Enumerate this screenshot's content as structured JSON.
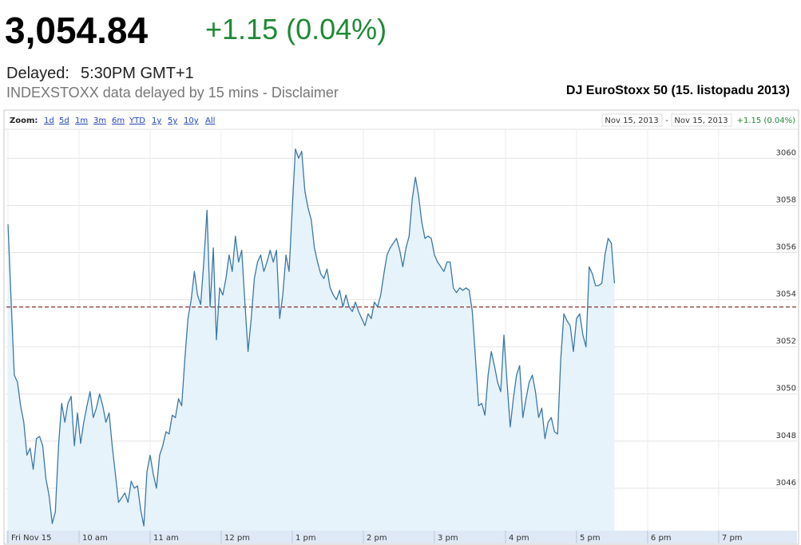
{
  "header": {
    "price": "3,054.84",
    "change": "+1.15 (0.04%)",
    "delayed_label": "Delayed:",
    "delayed_time": "5:30PM GMT+1",
    "source_note": "INDEXSTOXX data delayed by 15 mins - Disclaimer"
  },
  "zoom": {
    "label": "Zoom:",
    "options": [
      "1d",
      "5d",
      "1m",
      "3m",
      "6m",
      "YTD",
      "1y",
      "5y",
      "10y",
      "All"
    ]
  },
  "range": {
    "start": "Nov 15, 2013",
    "separator": "-",
    "end": "Nov 15, 2013",
    "change": "+1.15 (0.04%)"
  },
  "chart_data": {
    "type": "line",
    "title": "DJ EuroStoxx 50 (15. listopadu 2013)",
    "color": "#3b78a6",
    "fill_color": "#e6f3fb",
    "reference_line": 3053.69,
    "reference_color": "#8b3030",
    "grid": true,
    "xlim": [
      0,
      38430
    ],
    "ylim": [
      3044.2,
      3061.2
    ],
    "xticks": [
      {
        "value": 0,
        "label": "Fri Nov 15"
      },
      {
        "value": 3600,
        "label": "10 am"
      },
      {
        "value": 7200,
        "label": "11 am"
      },
      {
        "value": 10800,
        "label": "12 pm"
      },
      {
        "value": 14400,
        "label": "1 pm"
      },
      {
        "value": 18000,
        "label": "2 pm"
      },
      {
        "value": 21600,
        "label": "3 pm"
      },
      {
        "value": 25200,
        "label": "4 pm"
      },
      {
        "value": 28800,
        "label": "5 pm"
      },
      {
        "value": 32400,
        "label": "6 pm"
      },
      {
        "value": 36000,
        "label": "7 pm"
      }
    ],
    "yticks": [
      3046,
      3048,
      3050,
      3052,
      3054,
      3056,
      3058,
      3060
    ],
    "x": [
      0,
      160,
      320,
      480,
      640,
      800,
      960,
      1120,
      1280,
      1440,
      1600,
      1760,
      1920,
      2080,
      2240,
      2400,
      2560,
      2720,
      2880,
      3040,
      3200,
      3360,
      3520,
      3680,
      3840,
      4000,
      4160,
      4320,
      4480,
      4640,
      4800,
      4960,
      5120,
      5280,
      5440,
      5600,
      5760,
      5920,
      6080,
      6240,
      6400,
      6560,
      6720,
      6880,
      7040,
      7200,
      7360,
      7520,
      7680,
      7840,
      8000,
      8160,
      8320,
      8480,
      8640,
      8800,
      8960,
      9120,
      9280,
      9440,
      9600,
      9760,
      9920,
      10080,
      10240,
      10400,
      10560,
      10720,
      10880,
      11040,
      11200,
      11360,
      11520,
      11680,
      11840,
      12000,
      12160,
      12320,
      12480,
      12640,
      12800,
      12960,
      13120,
      13280,
      13440,
      13600,
      13760,
      13920,
      14080,
      14240,
      14400,
      14560,
      14720,
      14880,
      15040,
      15200,
      15360,
      15520,
      15680,
      15840,
      16000,
      16160,
      16320,
      16480,
      16640,
      16800,
      16960,
      17120,
      17280,
      17440,
      17600,
      17760,
      17920,
      18080,
      18240,
      18400,
      18560,
      18720,
      18880,
      19040,
      19200,
      19360,
      19520,
      19680,
      19840,
      20000,
      20160,
      20320,
      20480,
      20640,
      20800,
      20960,
      21120,
      21280,
      21440,
      21600,
      21760,
      21920,
      22080,
      22240,
      22400,
      22560,
      22720,
      22880,
      23040,
      23200,
      23360,
      23520,
      23680,
      23840,
      24000,
      24160,
      24320,
      24480,
      24640,
      24800,
      24960,
      25120,
      25280,
      25440,
      25600,
      25760,
      25920,
      26080,
      26240,
      26400,
      26560,
      26720,
      26880,
      27040,
      27200,
      27360,
      27520,
      27680,
      27840,
      28000,
      28160,
      28320,
      28480,
      28640,
      28800,
      28960,
      29120,
      29280,
      29440,
      29600,
      29760,
      29920,
      30080,
      30240,
      30400,
      30560,
      30720
    ],
    "values": [
      3057.2,
      3053.9,
      3050.8,
      3050.5,
      3049.5,
      3048.8,
      3047.4,
      3047.7,
      3046.8,
      3048.1,
      3048.2,
      3047.8,
      3046.4,
      3045.7,
      3044.5,
      3045.0,
      3047.8,
      3049.6,
      3048.8,
      3049.6,
      3049.9,
      3047.8,
      3049.2,
      3047.9,
      3048.8,
      3049.5,
      3050.1,
      3049.0,
      3049.4,
      3050.0,
      3049.5,
      3048.8,
      3049.2,
      3047.8,
      3046.6,
      3045.4,
      3045.6,
      3045.8,
      3045.4,
      3046.3,
      3046.0,
      3046.1,
      3045.1,
      3044.4,
      3046.7,
      3047.4,
      3046.6,
      3046.0,
      3047.4,
      3047.8,
      3048.4,
      3048.3,
      3049.1,
      3049.0,
      3049.8,
      3049.5,
      3051.5,
      3053.2,
      3054.0,
      3055.2,
      3054.2,
      3053.8,
      3055.6,
      3057.8,
      3053.7,
      3056.2,
      3052.3,
      3054.5,
      3054.2,
      3054.9,
      3055.9,
      3055.2,
      3056.7,
      3055.6,
      3056.1,
      3053.9,
      3051.8,
      3053.2,
      3054.9,
      3055.6,
      3055.9,
      3055.2,
      3055.6,
      3056.1,
      3055.6,
      3056.1,
      3053.2,
      3054.2,
      3055.9,
      3055.2,
      3057.9,
      3060.4,
      3060.0,
      3060.3,
      3058.6,
      3057.9,
      3057.4,
      3056.2,
      3055.6,
      3055.1,
      3054.9,
      3055.3,
      3054.5,
      3054.2,
      3054.0,
      3054.4,
      3053.7,
      3054.2,
      3053.7,
      3053.5,
      3053.9,
      3053.5,
      3053.2,
      3052.9,
      3053.4,
      3053.2,
      3053.9,
      3053.7,
      3054.2,
      3055.1,
      3055.9,
      3056.2,
      3056.4,
      3056.6,
      3056.1,
      3055.4,
      3056.2,
      3056.7,
      3058.3,
      3059.2,
      3058.4,
      3057.3,
      3056.6,
      3056.7,
      3056.6,
      3055.9,
      3055.6,
      3055.4,
      3055.2,
      3055.6,
      3055.6,
      3054.5,
      3054.3,
      3054.5,
      3054.4,
      3054.5,
      3054.4,
      3053.5,
      3051.5,
      3049.5,
      3049.6,
      3049.1,
      3050.8,
      3051.8,
      3051.2,
      3050.5,
      3050.1,
      3052.5,
      3050.5,
      3048.6,
      3049.8,
      3050.8,
      3051.2,
      3049.0,
      3049.8,
      3050.5,
      3050.8,
      3050.1,
      3049.0,
      3049.4,
      3048.1,
      3048.8,
      3049.0,
      3048.4,
      3048.3,
      3051.5,
      3053.4,
      3053.1,
      3052.9,
      3051.8,
      3053.2,
      3053.4,
      3052.5,
      3052.0,
      3055.4,
      3055.1,
      3054.6,
      3054.6,
      3054.7,
      3055.9,
      3056.6,
      3056.4,
      3054.7
    ]
  }
}
